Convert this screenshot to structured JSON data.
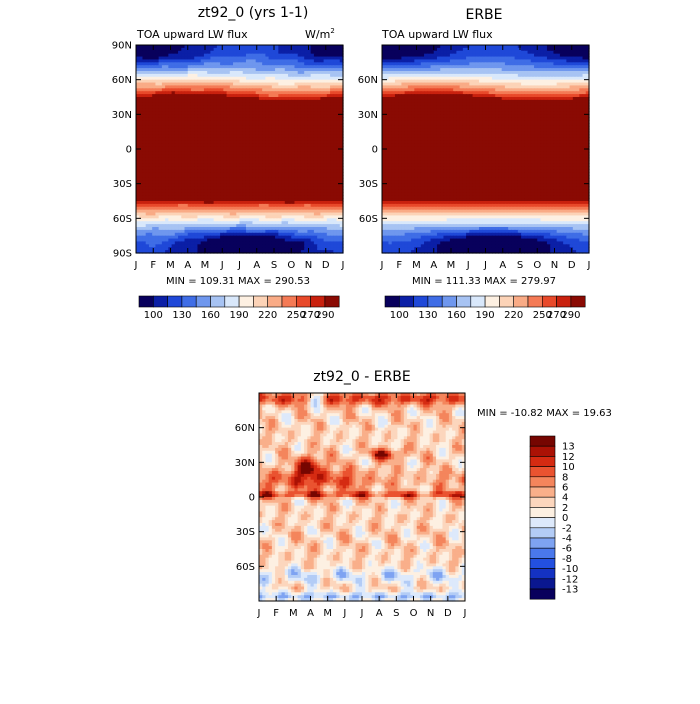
{
  "palette_abs": [
    "#08005c",
    "#0b1fa6",
    "#1f48d8",
    "#3f6de6",
    "#6f97ee",
    "#a7c3f3",
    "#d9e8fb",
    "#fdf0e2",
    "#fcd3b7",
    "#f9ab86",
    "#f47a55",
    "#e8492a",
    "#c9210e",
    "#8a0a03"
  ],
  "palette_diff": [
    "#08005c",
    "#0a1790",
    "#1432c2",
    "#2350e0",
    "#4a78ec",
    "#7ea3f2",
    "#b3ccf6",
    "#dde9fb",
    "#fdf0e2",
    "#fcd6bd",
    "#f9af8a",
    "#f4855c",
    "#ea5330",
    "#d52b12",
    "#ab1205",
    "#760601"
  ],
  "months": [
    "J",
    "F",
    "M",
    "A",
    "M",
    "J",
    "J",
    "A",
    "S",
    "O",
    "N",
    "D",
    "J"
  ],
  "lat_labels_full": [
    "90N",
    "60N",
    "30N",
    "0",
    "30S",
    "60S",
    "90S"
  ],
  "lat_labels_inner": [
    "60N",
    "30N",
    "0",
    "30S",
    "60S"
  ],
  "panels": {
    "model": {
      "title": "zt92_0 (yrs 1-1)",
      "subtitle_left": "TOA upward LW flux",
      "units": "W/m",
      "units_sup": "2",
      "stats": "MIN = 109.31 MAX = 290.53"
    },
    "obs": {
      "title": "ERBE",
      "subtitle_left": "TOA upward LW flux",
      "stats": "MIN = 111.33 MAX = 279.97"
    },
    "diff": {
      "title": "zt92_0 - ERBE",
      "stats": "MIN = -10.82 MAX =  19.63"
    }
  },
  "colorbar_abs": {
    "labels": [
      "100",
      "130",
      "160",
      "190",
      "220",
      "250",
      "270",
      "290"
    ]
  },
  "colorbar_diff": {
    "labels": [
      "13",
      "12",
      "10",
      "8",
      "6",
      "4",
      "2",
      "0",
      "-2",
      "-4",
      "-6",
      "-8",
      "-10",
      "-12",
      "-13"
    ]
  },
  "chart_data": [
    {
      "type": "heatmap",
      "title": "zt92_0 (yrs 1-1)",
      "subtitle": "TOA upward LW flux",
      "units": "W/m2",
      "x": [
        "J",
        "F",
        "M",
        "A",
        "M",
        "J",
        "J",
        "A",
        "S",
        "O",
        "N",
        "D",
        "J"
      ],
      "y_range": [
        -90,
        90
      ],
      "y_ticks": [
        "90N",
        "60N",
        "30N",
        "0",
        "30S",
        "60S",
        "90S"
      ],
      "min": 109.31,
      "max": 290.53,
      "levels": [
        100,
        115,
        130,
        145,
        160,
        175,
        190,
        205,
        220,
        235,
        250,
        260,
        270,
        280,
        290
      ]
    },
    {
      "type": "heatmap",
      "title": "ERBE",
      "subtitle": "TOA upward LW flux",
      "x": [
        "J",
        "F",
        "M",
        "A",
        "M",
        "J",
        "J",
        "A",
        "S",
        "O",
        "N",
        "D",
        "J"
      ],
      "y_range": [
        -90,
        90
      ],
      "y_ticks": [
        "60N",
        "30N",
        "0",
        "30S",
        "60S"
      ],
      "min": 111.33,
      "max": 279.97,
      "levels": [
        100,
        115,
        130,
        145,
        160,
        175,
        190,
        205,
        220,
        235,
        250,
        260,
        270,
        280,
        290
      ]
    },
    {
      "type": "heatmap",
      "title": "zt92_0 - ERBE",
      "x": [
        "J",
        "F",
        "M",
        "A",
        "M",
        "J",
        "J",
        "A",
        "S",
        "O",
        "N",
        "D",
        "J"
      ],
      "y_range": [
        -90,
        90
      ],
      "y_ticks": [
        "60N",
        "30N",
        "0",
        "30S",
        "60S"
      ],
      "min": -10.82,
      "max": 19.63,
      "levels": [
        -13,
        -12,
        -10,
        -8,
        -6,
        -4,
        -2,
        0,
        2,
        4,
        6,
        8,
        10,
        12,
        13
      ]
    }
  ]
}
